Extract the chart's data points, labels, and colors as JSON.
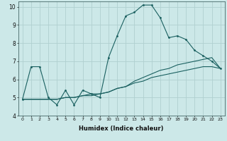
{
  "title": "",
  "xlabel": "Humidex (Indice chaleur)",
  "ylabel": "",
  "bg_color": "#cce8e8",
  "grid_color": "#b0d0d0",
  "line_color": "#1a6060",
  "xlim": [
    -0.5,
    23.5
  ],
  "ylim": [
    4,
    10.3
  ],
  "xticks": [
    0,
    1,
    2,
    3,
    4,
    5,
    6,
    7,
    8,
    9,
    10,
    11,
    12,
    13,
    14,
    15,
    16,
    17,
    18,
    19,
    20,
    21,
    22,
    23
  ],
  "yticks": [
    4,
    5,
    6,
    7,
    8,
    9,
    10
  ],
  "curve1_x": [
    0,
    1,
    2,
    3,
    4,
    5,
    6,
    7,
    8,
    9,
    10,
    11,
    12,
    13,
    14,
    15,
    16,
    17,
    18,
    19,
    20,
    21,
    22,
    23
  ],
  "curve1_y": [
    4.9,
    6.7,
    6.7,
    5.0,
    4.6,
    5.4,
    4.6,
    5.4,
    5.2,
    5.0,
    7.2,
    8.4,
    9.5,
    9.7,
    10.1,
    10.1,
    9.4,
    8.3,
    8.4,
    8.2,
    7.6,
    7.3,
    7.0,
    6.6
  ],
  "curve2_x": [
    0,
    1,
    2,
    3,
    4,
    5,
    6,
    7,
    8,
    9,
    10,
    11,
    12,
    13,
    14,
    15,
    16,
    17,
    18,
    19,
    20,
    21,
    22,
    23
  ],
  "curve2_y": [
    4.9,
    4.9,
    4.9,
    4.9,
    4.9,
    5.0,
    5.0,
    5.1,
    5.1,
    5.2,
    5.3,
    5.5,
    5.6,
    5.8,
    5.9,
    6.1,
    6.2,
    6.3,
    6.4,
    6.5,
    6.6,
    6.7,
    6.7,
    6.6
  ],
  "curve3_x": [
    0,
    1,
    2,
    3,
    4,
    5,
    6,
    7,
    8,
    9,
    10,
    11,
    12,
    13,
    14,
    15,
    16,
    17,
    18,
    19,
    20,
    21,
    22,
    23
  ],
  "curve3_y": [
    4.9,
    4.9,
    4.9,
    4.9,
    4.9,
    5.0,
    5.0,
    5.1,
    5.2,
    5.2,
    5.3,
    5.5,
    5.6,
    5.9,
    6.1,
    6.3,
    6.5,
    6.6,
    6.8,
    6.9,
    7.0,
    7.1,
    7.2,
    6.6
  ],
  "xtick_fontsize": 4.5,
  "ytick_fontsize": 5.5,
  "xlabel_fontsize": 6.0
}
